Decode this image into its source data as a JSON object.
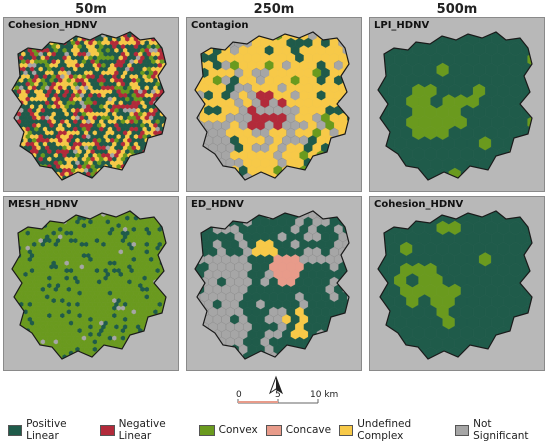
{
  "columns": [
    "50m",
    "250m",
    "500m"
  ],
  "panels": [
    {
      "label": "Cohesion_HDNV",
      "scheme": "mixed50"
    },
    {
      "label": "Contagion",
      "scheme": "contagion"
    },
    {
      "label": "LPI_HDNV",
      "scheme": "lpi"
    },
    {
      "label": "MESH_HDNV",
      "scheme": "mesh"
    },
    {
      "label": "ED_HDNV",
      "scheme": "ed"
    },
    {
      "label": "Cohesion_HDNV",
      "scheme": "coh500"
    }
  ],
  "colors": {
    "positive_linear": "#1f5b4a",
    "negative_linear": "#b22a3a",
    "convex": "#6a9a1e",
    "concave": "#e89b8a",
    "undefined_complex": "#f7c948",
    "not_significant": "#a6a6a6",
    "background": "#b8b8b8"
  },
  "legend": [
    {
      "label": "Positive Linear",
      "color": "#1f5b4a"
    },
    {
      "label": "Negative Linear",
      "color": "#b22a3a"
    },
    {
      "label": "Convex",
      "color": "#6a9a1e"
    },
    {
      "label": "Concave",
      "color": "#e89b8a"
    },
    {
      "label": "Undefined Complex",
      "color": "#f7c948"
    },
    {
      "label": "Not Significant",
      "color": "#a6a6a6"
    }
  ],
  "scalebar": {
    "ticks": [
      "0",
      "5",
      "10 km"
    ],
    "north": "A"
  }
}
